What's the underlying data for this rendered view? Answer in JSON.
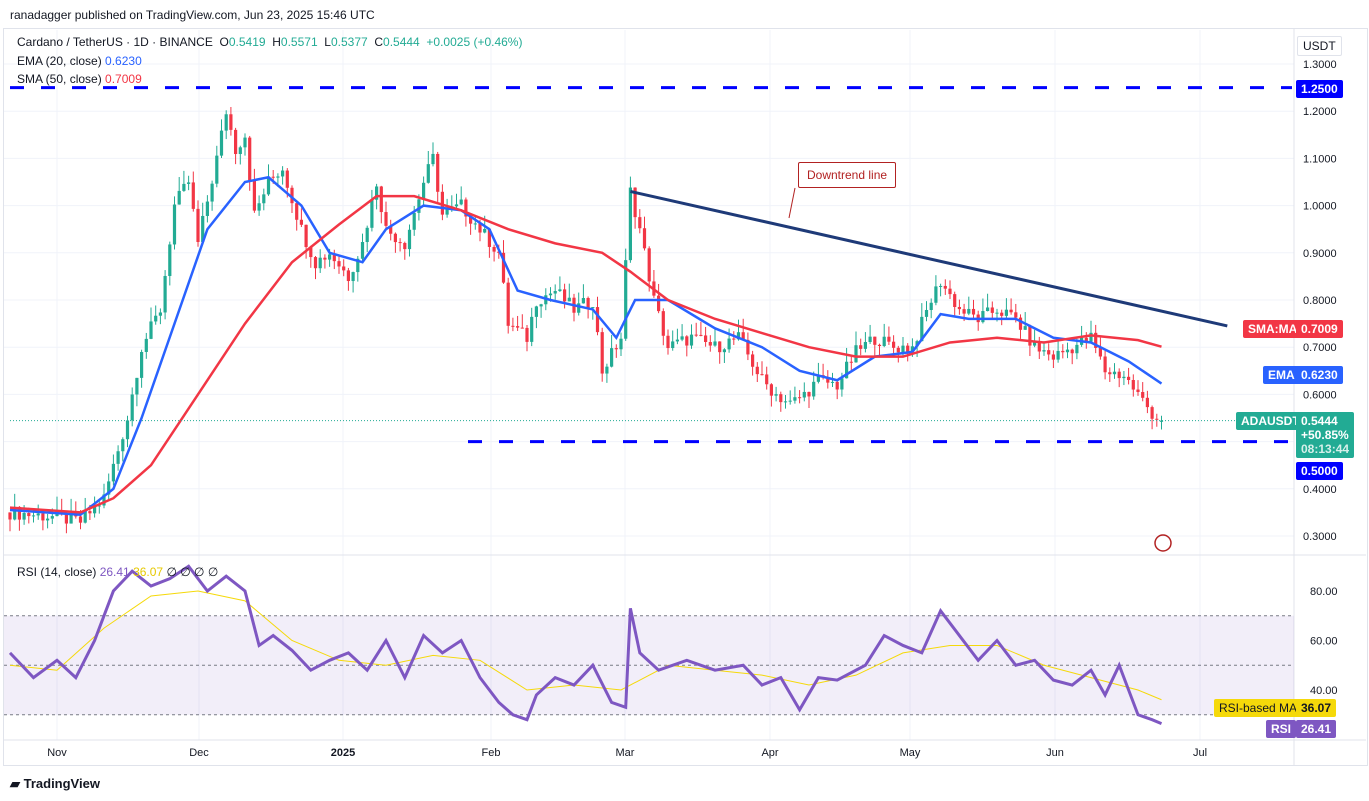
{
  "published": "ranadagger published on TradingView.com, Jun 23, 2025 15:46 UTC",
  "symbol": {
    "title": "Cardano / TetherUS · 1D · BINANCE",
    "o_label": "O",
    "o": "0.5419",
    "h_label": "H",
    "h": "0.5571",
    "l_label": "L",
    "l": "0.5377",
    "c_label": "C",
    "c": "0.5444",
    "change": "+0.0025 (+0.46%)"
  },
  "indicators": {
    "ema_label": "EMA (20, close)",
    "ema_value": "0.6230",
    "sma_label": "SMA (50, close)",
    "sma_value": "0.7009",
    "rsi_label": "RSI (14, close)",
    "rsi_value": "26.41",
    "rsi_ma_value": "36.07",
    "na": "∅ ∅ ∅ ∅"
  },
  "axis": {
    "currency": "USDT",
    "price_ticks": [
      "1.3000",
      "1.2000",
      "1.1000",
      "1.0000",
      "0.9000",
      "0.8000",
      "0.7000",
      "0.6000",
      "0.4000",
      "0.3000"
    ],
    "rsi_ticks": [
      "80.00",
      "60.00",
      "40.00"
    ],
    "time_ticks": [
      "Nov",
      "Dec",
      "2025",
      "Feb",
      "Mar",
      "Apr",
      "May",
      "Jun",
      "Jul"
    ]
  },
  "tags": {
    "level_high": "1.2500",
    "level_low": "0.5000",
    "sma_name": "SMA:MA",
    "sma": "0.7009",
    "ema_name": "EMA",
    "ema": "0.6230",
    "sym": "ADAUSDT",
    "price": "0.5444",
    "pct": "+50.85%",
    "countdown": "08:13:44",
    "rsi_ma_name": "RSI-based MA",
    "rsi_ma": "36.07",
    "rsi_name": "RSI",
    "rsi": "26.41"
  },
  "annotation": "Downtrend line",
  "logo": "TradingView",
  "colors": {
    "up": "#22ab94",
    "down": "#f23645",
    "ema": "#2962ff",
    "sma": "#f23645",
    "level": "#0000ff",
    "trend": "#1e3a78",
    "rsi": "#7e57c2",
    "rsi_ma": "#f5d90a"
  },
  "chart_data": {
    "type": "candlestick",
    "x_unit": "day index from Oct 21 2024",
    "price_path": [
      [
        0,
        0.35
      ],
      [
        10,
        0.34
      ],
      [
        15,
        0.33
      ],
      [
        20,
        0.38
      ],
      [
        25,
        0.55
      ],
      [
        28,
        0.7
      ],
      [
        32,
        0.78
      ],
      [
        35,
        1.0
      ],
      [
        38,
        1.05
      ],
      [
        40,
        0.92
      ],
      [
        44,
        1.1
      ],
      [
        46,
        1.2
      ],
      [
        48,
        1.12
      ],
      [
        50,
        1.15
      ],
      [
        52,
        0.98
      ],
      [
        55,
        1.05
      ],
      [
        58,
        1.08
      ],
      [
        62,
        0.95
      ],
      [
        65,
        0.88
      ],
      [
        68,
        0.9
      ],
      [
        72,
        0.85
      ],
      [
        75,
        0.92
      ],
      [
        78,
        1.05
      ],
      [
        80,
        0.95
      ],
      [
        84,
        0.92
      ],
      [
        88,
        1.05
      ],
      [
        90,
        1.1
      ],
      [
        92,
        0.98
      ],
      [
        96,
        1.0
      ],
      [
        100,
        0.95
      ],
      [
        104,
        0.9
      ],
      [
        106,
        0.75
      ],
      [
        110,
        0.72
      ],
      [
        112,
        0.8
      ],
      [
        116,
        0.82
      ],
      [
        120,
        0.78
      ],
      [
        124,
        0.8
      ],
      [
        126,
        0.65
      ],
      [
        130,
        0.72
      ],
      [
        132,
        1.03
      ],
      [
        134,
        0.95
      ],
      [
        137,
        0.8
      ],
      [
        140,
        0.7
      ],
      [
        145,
        0.72
      ],
      [
        150,
        0.7
      ],
      [
        155,
        0.72
      ],
      [
        160,
        0.63
      ],
      [
        163,
        0.6
      ],
      [
        166,
        0.58
      ],
      [
        169,
        0.6
      ],
      [
        172,
        0.63
      ],
      [
        176,
        0.62
      ],
      [
        180,
        0.69
      ],
      [
        184,
        0.72
      ],
      [
        188,
        0.7
      ],
      [
        192,
        0.7
      ],
      [
        196,
        0.8
      ],
      [
        198,
        0.84
      ],
      [
        202,
        0.78
      ],
      [
        206,
        0.76
      ],
      [
        210,
        0.78
      ],
      [
        214,
        0.76
      ],
      [
        218,
        0.7
      ],
      [
        222,
        0.68
      ],
      [
        226,
        0.7
      ],
      [
        230,
        0.72
      ],
      [
        233,
        0.65
      ],
      [
        237,
        0.64
      ],
      [
        240,
        0.6
      ],
      [
        243,
        0.56
      ],
      [
        245,
        0.544
      ]
    ],
    "ema20": [
      [
        0,
        0.355
      ],
      [
        15,
        0.345
      ],
      [
        22,
        0.4
      ],
      [
        28,
        0.55
      ],
      [
        35,
        0.75
      ],
      [
        42,
        0.95
      ],
      [
        50,
        1.05
      ],
      [
        55,
        1.06
      ],
      [
        62,
        1.0
      ],
      [
        68,
        0.9
      ],
      [
        75,
        0.88
      ],
      [
        80,
        0.95
      ],
      [
        88,
        1.0
      ],
      [
        96,
        0.99
      ],
      [
        102,
        0.95
      ],
      [
        108,
        0.82
      ],
      [
        115,
        0.8
      ],
      [
        124,
        0.78
      ],
      [
        129,
        0.72
      ],
      [
        133,
        0.8
      ],
      [
        140,
        0.8
      ],
      [
        150,
        0.74
      ],
      [
        160,
        0.7
      ],
      [
        168,
        0.65
      ],
      [
        176,
        0.63
      ],
      [
        184,
        0.68
      ],
      [
        192,
        0.69
      ],
      [
        198,
        0.77
      ],
      [
        204,
        0.76
      ],
      [
        214,
        0.76
      ],
      [
        222,
        0.72
      ],
      [
        230,
        0.71
      ],
      [
        238,
        0.67
      ],
      [
        245,
        0.623
      ]
    ],
    "sma50": [
      [
        0,
        0.36
      ],
      [
        15,
        0.35
      ],
      [
        22,
        0.38
      ],
      [
        30,
        0.45
      ],
      [
        40,
        0.6
      ],
      [
        50,
        0.75
      ],
      [
        60,
        0.88
      ],
      [
        70,
        0.96
      ],
      [
        78,
        1.02
      ],
      [
        86,
        1.02
      ],
      [
        96,
        0.99
      ],
      [
        106,
        0.95
      ],
      [
        116,
        0.92
      ],
      [
        126,
        0.9
      ],
      [
        132,
        0.86
      ],
      [
        140,
        0.8
      ],
      [
        150,
        0.76
      ],
      [
        160,
        0.73
      ],
      [
        170,
        0.7
      ],
      [
        180,
        0.68
      ],
      [
        190,
        0.68
      ],
      [
        200,
        0.71
      ],
      [
        210,
        0.72
      ],
      [
        220,
        0.71
      ],
      [
        230,
        0.725
      ],
      [
        240,
        0.715
      ],
      [
        245,
        0.701
      ]
    ],
    "trendline": [
      [
        132,
        1.03
      ],
      [
        259,
        0.745
      ]
    ],
    "levels": [
      1.25,
      0.5
    ],
    "rsi": [
      [
        0,
        55
      ],
      [
        5,
        45
      ],
      [
        10,
        52
      ],
      [
        14,
        45
      ],
      [
        18,
        60
      ],
      [
        22,
        80
      ],
      [
        26,
        88
      ],
      [
        30,
        82
      ],
      [
        34,
        85
      ],
      [
        38,
        90
      ],
      [
        42,
        80
      ],
      [
        46,
        86
      ],
      [
        50,
        80
      ],
      [
        53,
        58
      ],
      [
        56,
        62
      ],
      [
        60,
        56
      ],
      [
        64,
        48
      ],
      [
        68,
        52
      ],
      [
        72,
        55
      ],
      [
        76,
        48
      ],
      [
        80,
        60
      ],
      [
        84,
        45
      ],
      [
        88,
        62
      ],
      [
        92,
        55
      ],
      [
        96,
        60
      ],
      [
        100,
        45
      ],
      [
        104,
        35
      ],
      [
        107,
        30
      ],
      [
        110,
        28
      ],
      [
        112,
        38
      ],
      [
        116,
        45
      ],
      [
        120,
        42
      ],
      [
        124,
        50
      ],
      [
        128,
        35
      ],
      [
        131,
        33
      ],
      [
        132,
        73
      ],
      [
        134,
        55
      ],
      [
        138,
        48
      ],
      [
        144,
        52
      ],
      [
        150,
        48
      ],
      [
        156,
        50
      ],
      [
        160,
        42
      ],
      [
        164,
        45
      ],
      [
        168,
        32
      ],
      [
        172,
        45
      ],
      [
        176,
        44
      ],
      [
        182,
        50
      ],
      [
        186,
        62
      ],
      [
        190,
        58
      ],
      [
        194,
        55
      ],
      [
        198,
        72
      ],
      [
        202,
        62
      ],
      [
        206,
        52
      ],
      [
        210,
        60
      ],
      [
        214,
        50
      ],
      [
        218,
        52
      ],
      [
        222,
        44
      ],
      [
        226,
        42
      ],
      [
        230,
        48
      ],
      [
        233,
        38
      ],
      [
        236,
        50
      ],
      [
        240,
        30
      ],
      [
        243,
        28
      ],
      [
        245,
        26.41
      ]
    ],
    "rsi_ma": [
      [
        0,
        50
      ],
      [
        10,
        48
      ],
      [
        20,
        65
      ],
      [
        30,
        78
      ],
      [
        40,
        80
      ],
      [
        50,
        76
      ],
      [
        60,
        60
      ],
      [
        70,
        52
      ],
      [
        80,
        50
      ],
      [
        90,
        54
      ],
      [
        100,
        52
      ],
      [
        110,
        40
      ],
      [
        120,
        42
      ],
      [
        130,
        40
      ],
      [
        140,
        50
      ],
      [
        150,
        48
      ],
      [
        160,
        46
      ],
      [
        170,
        42
      ],
      [
        180,
        46
      ],
      [
        190,
        55
      ],
      [
        200,
        58
      ],
      [
        210,
        58
      ],
      [
        220,
        50
      ],
      [
        230,
        45
      ],
      [
        240,
        40
      ],
      [
        245,
        36.07
      ]
    ],
    "rsi_bands": [
      70,
      30
    ],
    "ylim": [
      0.27,
      1.33
    ]
  }
}
